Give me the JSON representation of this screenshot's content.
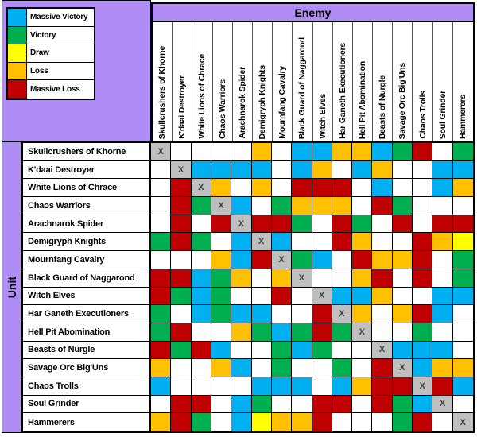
{
  "headers": {
    "enemy": "Enemy",
    "unit": "Unit"
  },
  "colors": {
    "banner_purple": "#AF8CF6",
    "mirror_gray": "#BFBFBF",
    "grid_line": "#000000",
    "header_separator": "#595959"
  },
  "chart_data": {
    "type": "heatmap",
    "x_label": "Enemy",
    "y_label": "Unit",
    "diagonal_marker": "X",
    "mirror_color": "#BFBFBF",
    "empty_color": "#FFFFFF",
    "legend_position": "top-left",
    "legend": [
      {
        "label": "Massive Victory",
        "code": "MV",
        "color": "#00B0F0"
      },
      {
        "label": "Victory",
        "code": "V",
        "color": "#00B050"
      },
      {
        "label": "Draw",
        "code": "D",
        "color": "#FFFF00"
      },
      {
        "label": "Loss",
        "code": "L",
        "color": "#FFC000"
      },
      {
        "label": "Massive Loss",
        "code": "ML",
        "color": "#C00000"
      }
    ],
    "categories": [
      "Skullcrushers of Khorne",
      "K'daai Destroyer",
      "White Lions of Chrace",
      "Chaos Warriors",
      "Arachnarok Spider",
      "Demigryph Knights",
      "Mournfang Cavalry",
      "Black Guard of Naggarond",
      "Witch Elves",
      "Har Ganeth Executioners",
      "Hell Pit Abomination",
      "Beasts of Nurgle",
      "Savage Orc Big'Uns",
      "Chaos Trolls",
      "Soul Grinder",
      "Hammerers"
    ],
    "matrix": [
      [
        "X",
        "",
        "",
        "",
        "",
        "L",
        "",
        "MV",
        "MV",
        "L",
        "L",
        "MV",
        "V",
        "ML",
        "",
        "V"
      ],
      [
        "",
        "X",
        "MV",
        "MV",
        "MV",
        "MV",
        "",
        "MV",
        "L",
        "",
        "MV",
        "L",
        "",
        "",
        "MV",
        "MV"
      ],
      [
        "",
        "ML",
        "X",
        "L",
        "",
        "L",
        "",
        "ML",
        "ML",
        "ML",
        "",
        "MV",
        "",
        "",
        "MV",
        "L"
      ],
      [
        "",
        "ML",
        "V",
        "X",
        "MV",
        "",
        "V",
        "L",
        "L",
        "L",
        "",
        "ML",
        "V",
        "",
        "",
        ""
      ],
      [
        "",
        "ML",
        "",
        "ML",
        "X",
        "ML",
        "ML",
        "V",
        "",
        "ML",
        "V",
        "",
        "ML",
        "",
        "ML",
        "ML"
      ],
      [
        "V",
        "ML",
        "V",
        "",
        "MV",
        "X",
        "MV",
        "",
        "",
        "ML",
        "L",
        "",
        "",
        "ML",
        "L",
        "D"
      ],
      [
        "",
        "",
        "",
        "L",
        "MV",
        "ML",
        "X",
        "V",
        "MV",
        "",
        "ML",
        "L",
        "L",
        "ML",
        "",
        "V"
      ],
      [
        "ML",
        "ML",
        "MV",
        "V",
        "L",
        "",
        "L",
        "X",
        "",
        "",
        "L",
        "ML",
        "",
        "ML",
        "",
        "V"
      ],
      [
        "ML",
        "V",
        "MV",
        "V",
        "",
        "",
        "ML",
        "",
        "X",
        "MV",
        "MV",
        "L",
        "",
        "",
        "MV",
        "MV"
      ],
      [
        "V",
        "",
        "MV",
        "V",
        "MV",
        "MV",
        "",
        "",
        "ML",
        "X",
        "L",
        "",
        "L",
        "ML",
        "MV",
        ""
      ],
      [
        "V",
        "ML",
        "",
        "",
        "L",
        "V",
        "MV",
        "V",
        "ML",
        "V",
        "X",
        "",
        "",
        "V",
        "",
        ""
      ],
      [
        "ML",
        "V",
        "ML",
        "MV",
        "",
        "",
        "V",
        "MV",
        "V",
        "",
        "",
        "X",
        "MV",
        "MV",
        "MV",
        ""
      ],
      [
        "L",
        "",
        "",
        "L",
        "MV",
        "",
        "V",
        "",
        "",
        "V",
        "",
        "ML",
        "X",
        "MV",
        "L",
        "L"
      ],
      [
        "MV",
        "",
        "",
        "",
        "",
        "MV",
        "MV",
        "MV",
        "",
        "MV",
        "L",
        "ML",
        "ML",
        "X",
        "ML",
        "MV"
      ],
      [
        "",
        "ML",
        "ML",
        "",
        "MV",
        "V",
        "",
        "",
        "ML",
        "ML",
        "",
        "ML",
        "V",
        "MV",
        "X",
        ""
      ],
      [
        "L",
        "ML",
        "V",
        "",
        "MV",
        "D",
        "L",
        "L",
        "ML",
        "",
        "",
        "",
        "V",
        "ML",
        "",
        "X"
      ]
    ]
  }
}
